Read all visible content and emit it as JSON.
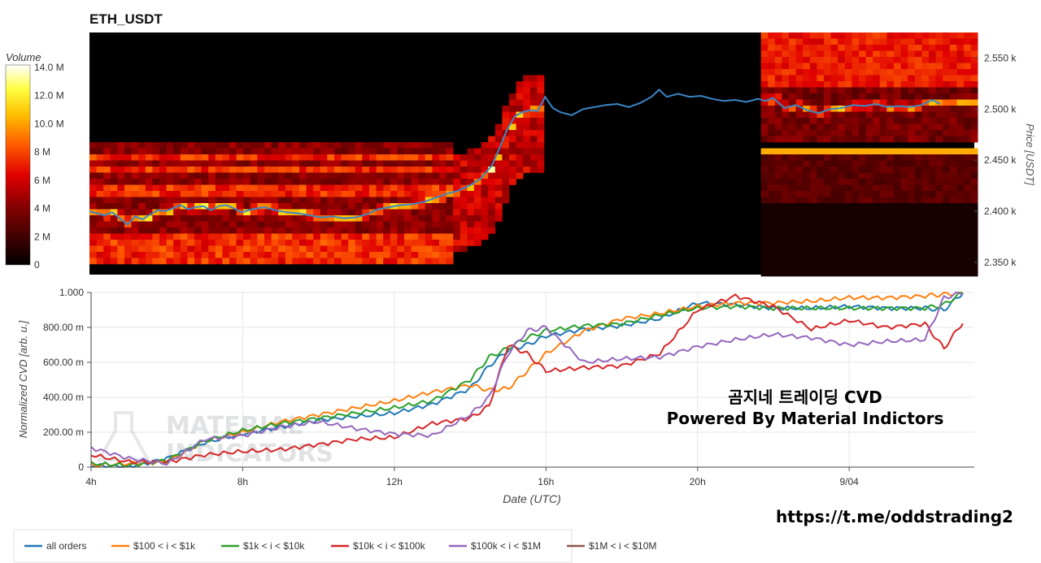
{
  "title": "ETH_USDT",
  "colorbar": {
    "title": "Volume",
    "ticks": [
      "14.0 M",
      "12.0 M",
      "10.0 M",
      "8 M",
      "6 M",
      "4 M",
      "2 M",
      "0"
    ]
  },
  "watermark": {
    "line1": "MATERIAL",
    "line2": "INDICATORS"
  },
  "overlay": {
    "line1": "곰지네 트레이딩 CVD",
    "line2": "Powered By Material Indictors",
    "link": "https://t.me/oddstrading2"
  },
  "chart_data": [
    {
      "type": "heatmap",
      "title": "ETH_USDT",
      "ylabel": "Price [USDT]",
      "yticks": [
        "2.550 k",
        "2.500 k",
        "2.450 k",
        "2.400 k",
        "2.350 k"
      ],
      "ytick_values": [
        2550,
        2500,
        2450,
        2400,
        2350
      ],
      "ylim": [
        2338,
        2575
      ],
      "colorscale": "hot",
      "zlim": [
        0,
        14000000
      ],
      "price_series": {
        "name": "Price",
        "x_hours": [
          4.0,
          4.2,
          4.4,
          4.6,
          4.8,
          5.0,
          5.2,
          5.4,
          5.6,
          5.8,
          6.0,
          6.2,
          6.4,
          6.6,
          6.8,
          7.0,
          7.2,
          7.4,
          7.6,
          7.8,
          8.0,
          8.3,
          8.6,
          8.9,
          9.2,
          9.5,
          9.8,
          10.1,
          10.4,
          10.7,
          11.0,
          11.3,
          11.6,
          11.9,
          12.2,
          12.5,
          12.8,
          13.1,
          13.4,
          13.7,
          14.0,
          14.3,
          14.6,
          14.8,
          15.0,
          15.2,
          15.4,
          15.6,
          15.8,
          16.0,
          16.2,
          16.4,
          16.7,
          17.0,
          17.3,
          17.6,
          17.9,
          18.2,
          18.5,
          18.8,
          19.0,
          19.2,
          19.5,
          19.8,
          20.1,
          20.4,
          20.7,
          21.0,
          21.3,
          21.6,
          21.8,
          22.0,
          22.3,
          22.6,
          22.9,
          23.2,
          23.5,
          23.8,
          24.1,
          24.4,
          24.7,
          25.0,
          25.3,
          25.6,
          25.9,
          26.2,
          26.4
        ],
        "prices": [
          2400,
          2398,
          2396,
          2399,
          2393,
          2387,
          2395,
          2392,
          2397,
          2401,
          2400,
          2403,
          2406,
          2402,
          2404,
          2405,
          2401,
          2405,
          2406,
          2403,
          2399,
          2402,
          2404,
          2401,
          2399,
          2398,
          2396,
          2394,
          2395,
          2393,
          2394,
          2397,
          2402,
          2404,
          2406,
          2407,
          2409,
          2413,
          2417,
          2420,
          2425,
          2432,
          2445,
          2462,
          2480,
          2493,
          2497,
          2499,
          2498,
          2512,
          2501,
          2497,
          2494,
          2500,
          2502,
          2504,
          2505,
          2502,
          2506,
          2512,
          2519,
          2512,
          2515,
          2512,
          2513,
          2510,
          2508,
          2509,
          2507,
          2510,
          2508,
          2511,
          2501,
          2504,
          2499,
          2496,
          2500,
          2501,
          2504,
          2503,
          2505,
          2502,
          2503,
          2502,
          2504,
          2509,
          2505
        ]
      }
    },
    {
      "type": "line",
      "xlabel": "Date (UTC)",
      "ylabel": "Normalized CVD [arb. u.]",
      "xticks": [
        "4h",
        "8h",
        "12h",
        "16h",
        "20h",
        "9/04"
      ],
      "xtick_hours": [
        4,
        8,
        12,
        16,
        20,
        24
      ],
      "xlim": [
        4,
        27.3
      ],
      "yticks": [
        "0",
        "200.00 m",
        "400.00 m",
        "600.00 m",
        "800.00 m",
        "1.000"
      ],
      "ytick_values": [
        0,
        0.2,
        0.4,
        0.6,
        0.8,
        1.0
      ],
      "ylim": [
        0,
        1.0
      ],
      "x_hours": [
        4,
        5,
        6,
        7,
        8,
        9,
        10,
        11,
        12,
        13,
        14,
        14.5,
        15,
        15.5,
        16,
        17,
        18,
        19,
        20,
        21,
        22,
        23,
        24,
        25,
        26,
        26.5,
        27
      ],
      "series": [
        {
          "name": "all orders",
          "color": "#1f77b4",
          "values": [
            0.01,
            0.0,
            0.05,
            0.14,
            0.19,
            0.23,
            0.27,
            0.29,
            0.31,
            0.36,
            0.45,
            0.58,
            0.67,
            0.7,
            0.75,
            0.79,
            0.81,
            0.85,
            0.94,
            0.93,
            0.91,
            0.91,
            0.92,
            0.91,
            0.91,
            0.9,
            1.0
          ]
        },
        {
          "name": "$100 < i < $1k",
          "color": "#ff7f0e",
          "values": [
            0.01,
            0.02,
            0.03,
            0.15,
            0.2,
            0.26,
            0.3,
            0.34,
            0.38,
            0.43,
            0.47,
            0.44,
            0.45,
            0.55,
            0.65,
            0.78,
            0.85,
            0.88,
            0.92,
            0.94,
            0.94,
            0.95,
            0.97,
            0.97,
            0.98,
            0.99,
            1.0
          ]
        },
        {
          "name": "$1k < i < $10k",
          "color": "#2ca02c",
          "values": [
            0.02,
            0.01,
            0.04,
            0.15,
            0.21,
            0.25,
            0.28,
            0.31,
            0.34,
            0.38,
            0.5,
            0.63,
            0.68,
            0.74,
            0.78,
            0.81,
            0.82,
            0.87,
            0.91,
            0.92,
            0.91,
            0.91,
            0.91,
            0.91,
            0.91,
            0.93,
            1.0
          ]
        },
        {
          "name": "$10k < i < $100k",
          "color": "#d62728",
          "values": [
            0.07,
            0.03,
            0.03,
            0.07,
            0.09,
            0.1,
            0.13,
            0.16,
            0.17,
            0.25,
            0.28,
            0.35,
            0.7,
            0.65,
            0.55,
            0.57,
            0.58,
            0.65,
            0.9,
            0.98,
            0.92,
            0.79,
            0.84,
            0.8,
            0.82,
            0.68,
            0.83
          ]
        },
        {
          "name": "$100k < i < $1M",
          "color": "#9467bd",
          "values": [
            0.11,
            0.05,
            0.02,
            0.16,
            0.18,
            0.23,
            0.26,
            0.22,
            0.19,
            0.18,
            0.3,
            0.4,
            0.65,
            0.78,
            0.8,
            0.6,
            0.62,
            0.63,
            0.69,
            0.73,
            0.76,
            0.74,
            0.7,
            0.72,
            0.73,
            0.97,
            1.0
          ]
        },
        {
          "name": "$1M < i < $10M",
          "color": "#8c564b",
          "values": []
        }
      ]
    }
  ]
}
